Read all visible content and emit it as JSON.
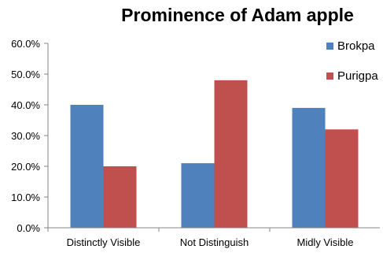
{
  "chart_data": {
    "type": "bar",
    "title": "Prominence of Adam apple",
    "categories": [
      "Distinctly Visible",
      "Not Distinguish",
      "Midly Visible"
    ],
    "series": [
      {
        "name": "Brokpa",
        "values": [
          40.0,
          21.0,
          39.0
        ],
        "color": "#4F81BD"
      },
      {
        "name": "Purigpa",
        "values": [
          20.0,
          48.0,
          32.0
        ],
        "color": "#C0504D"
      }
    ],
    "ylim": [
      0,
      60
    ],
    "yticks": [
      "0.0%",
      "10.0%",
      "20.0%",
      "30.0%",
      "40.0%",
      "50.0%",
      "60.0%"
    ],
    "ytick_values": [
      0,
      10,
      20,
      30,
      40,
      50,
      60
    ],
    "grid": false,
    "legend_position": "right"
  }
}
